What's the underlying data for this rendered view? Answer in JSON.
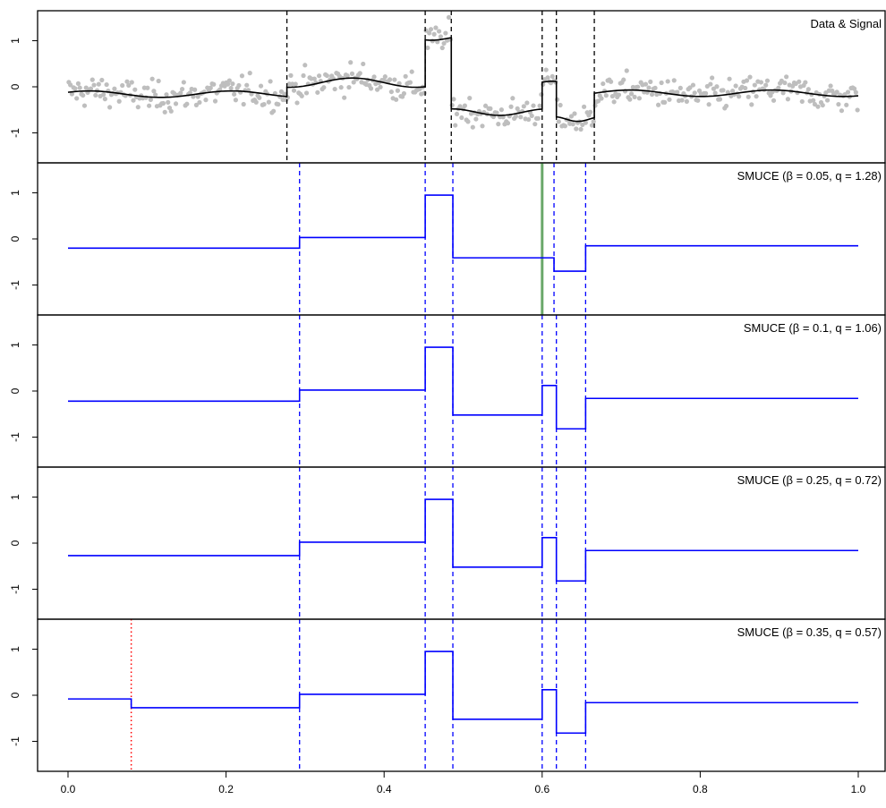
{
  "chart_data": [
    {
      "type": "scatter",
      "title": "Data & Signal",
      "ylim": [
        -1.65,
        1.65
      ],
      "yticks": [
        -1,
        0,
        1
      ],
      "changepoints": [
        0.277,
        0.452,
        0.485,
        0.6,
        0.618,
        0.666
      ],
      "changepoint_color": "#000000",
      "point_color": "#bebebe",
      "signal_color": "#000000",
      "signal_segments": [
        {
          "x0": 0.0,
          "x1": 0.277,
          "base": -0.16,
          "amp": 0.07,
          "period": 0.18,
          "phase": 0.1
        },
        {
          "x0": 0.277,
          "x1": 0.452,
          "base": 0.09,
          "amp": 0.1,
          "period": 0.16,
          "phase": 0.0
        },
        {
          "x0": 0.452,
          "x1": 0.485,
          "base": 1.05,
          "amp": 0.04,
          "period": 0.08,
          "phase": 0.0
        },
        {
          "x0": 0.485,
          "x1": 0.6,
          "base": -0.55,
          "amp": 0.07,
          "period": 0.12,
          "phase": 0.2
        },
        {
          "x0": 0.6,
          "x1": 0.618,
          "base": 0.1,
          "amp": 0.02,
          "period": 0.05,
          "phase": 0.0
        },
        {
          "x0": 0.618,
          "x1": 0.666,
          "base": -0.7,
          "amp": 0.05,
          "period": 0.06,
          "phase": 0.0
        },
        {
          "x0": 0.666,
          "x1": 1.0,
          "base": -0.14,
          "amp": 0.07,
          "period": 0.18,
          "phase": 0.3
        }
      ]
    },
    {
      "type": "line",
      "title": "SMUCE (β = 0.05, q = 1.28)",
      "ylim": [
        -1.65,
        1.65
      ],
      "yticks": [
        -1,
        0,
        1
      ],
      "line_color": "#0000ff",
      "changepoints": [
        0.293,
        0.452,
        0.487,
        0.615,
        0.655
      ],
      "steps": [
        {
          "x0": 0.0,
          "x1": 0.293,
          "y": -0.2
        },
        {
          "x0": 0.293,
          "x1": 0.452,
          "y": 0.03
        },
        {
          "x0": 0.452,
          "x1": 0.487,
          "y": 0.95
        },
        {
          "x0": 0.487,
          "x1": 0.615,
          "y": -0.41
        },
        {
          "x0": 0.615,
          "x1": 0.655,
          "y": -0.7
        },
        {
          "x0": 0.655,
          "x1": 1.0,
          "y": -0.15
        }
      ],
      "marker_line": {
        "x": 0.6,
        "color": "#6aa86a"
      }
    },
    {
      "type": "line",
      "title": "SMUCE (β = 0.1, q = 1.06)",
      "ylim": [
        -1.65,
        1.65
      ],
      "yticks": [
        -1,
        0,
        1
      ],
      "line_color": "#0000ff",
      "changepoints": [
        0.293,
        0.452,
        0.487,
        0.6,
        0.618,
        0.655
      ],
      "steps": [
        {
          "x0": 0.0,
          "x1": 0.293,
          "y": -0.22
        },
        {
          "x0": 0.293,
          "x1": 0.452,
          "y": 0.02
        },
        {
          "x0": 0.452,
          "x1": 0.487,
          "y": 0.95
        },
        {
          "x0": 0.487,
          "x1": 0.6,
          "y": -0.52
        },
        {
          "x0": 0.6,
          "x1": 0.618,
          "y": 0.12
        },
        {
          "x0": 0.618,
          "x1": 0.655,
          "y": -0.82
        },
        {
          "x0": 0.655,
          "x1": 1.0,
          "y": -0.16
        }
      ]
    },
    {
      "type": "line",
      "title": "SMUCE (β = 0.25, q = 0.72)",
      "ylim": [
        -1.65,
        1.65
      ],
      "yticks": [
        -1,
        0,
        1
      ],
      "line_color": "#0000ff",
      "changepoints": [
        0.293,
        0.452,
        0.487,
        0.6,
        0.618,
        0.655
      ],
      "steps": [
        {
          "x0": 0.0,
          "x1": 0.293,
          "y": -0.27
        },
        {
          "x0": 0.293,
          "x1": 0.452,
          "y": 0.02
        },
        {
          "x0": 0.452,
          "x1": 0.487,
          "y": 0.95
        },
        {
          "x0": 0.487,
          "x1": 0.6,
          "y": -0.52
        },
        {
          "x0": 0.6,
          "x1": 0.618,
          "y": 0.12
        },
        {
          "x0": 0.618,
          "x1": 0.655,
          "y": -0.82
        },
        {
          "x0": 0.655,
          "x1": 1.0,
          "y": -0.16
        }
      ]
    },
    {
      "type": "line",
      "title": "SMUCE (β = 0.35, q = 0.57)",
      "ylim": [
        -1.65,
        1.65
      ],
      "yticks": [
        -1,
        0,
        1
      ],
      "line_color": "#0000ff",
      "changepoints": [
        0.293,
        0.452,
        0.487,
        0.6,
        0.618,
        0.655
      ],
      "false_changepoint": {
        "x": 0.08,
        "color": "#ff0000"
      },
      "steps": [
        {
          "x0": 0.0,
          "x1": 0.08,
          "y": -0.08
        },
        {
          "x0": 0.08,
          "x1": 0.293,
          "y": -0.27
        },
        {
          "x0": 0.293,
          "x1": 0.452,
          "y": 0.02
        },
        {
          "x0": 0.452,
          "x1": 0.487,
          "y": 0.95
        },
        {
          "x0": 0.487,
          "x1": 0.6,
          "y": -0.52
        },
        {
          "x0": 0.6,
          "x1": 0.618,
          "y": 0.12
        },
        {
          "x0": 0.618,
          "x1": 0.655,
          "y": -0.82
        },
        {
          "x0": 0.655,
          "x1": 1.0,
          "y": -0.16
        }
      ]
    }
  ],
  "x_axis": {
    "xlim": [
      0,
      1
    ],
    "ticks": [
      0.0,
      0.2,
      0.4,
      0.6,
      0.8,
      1.0
    ],
    "tick_labels": [
      "0.0",
      "0.2",
      "0.4",
      "0.6",
      "0.8",
      "1.0"
    ]
  }
}
